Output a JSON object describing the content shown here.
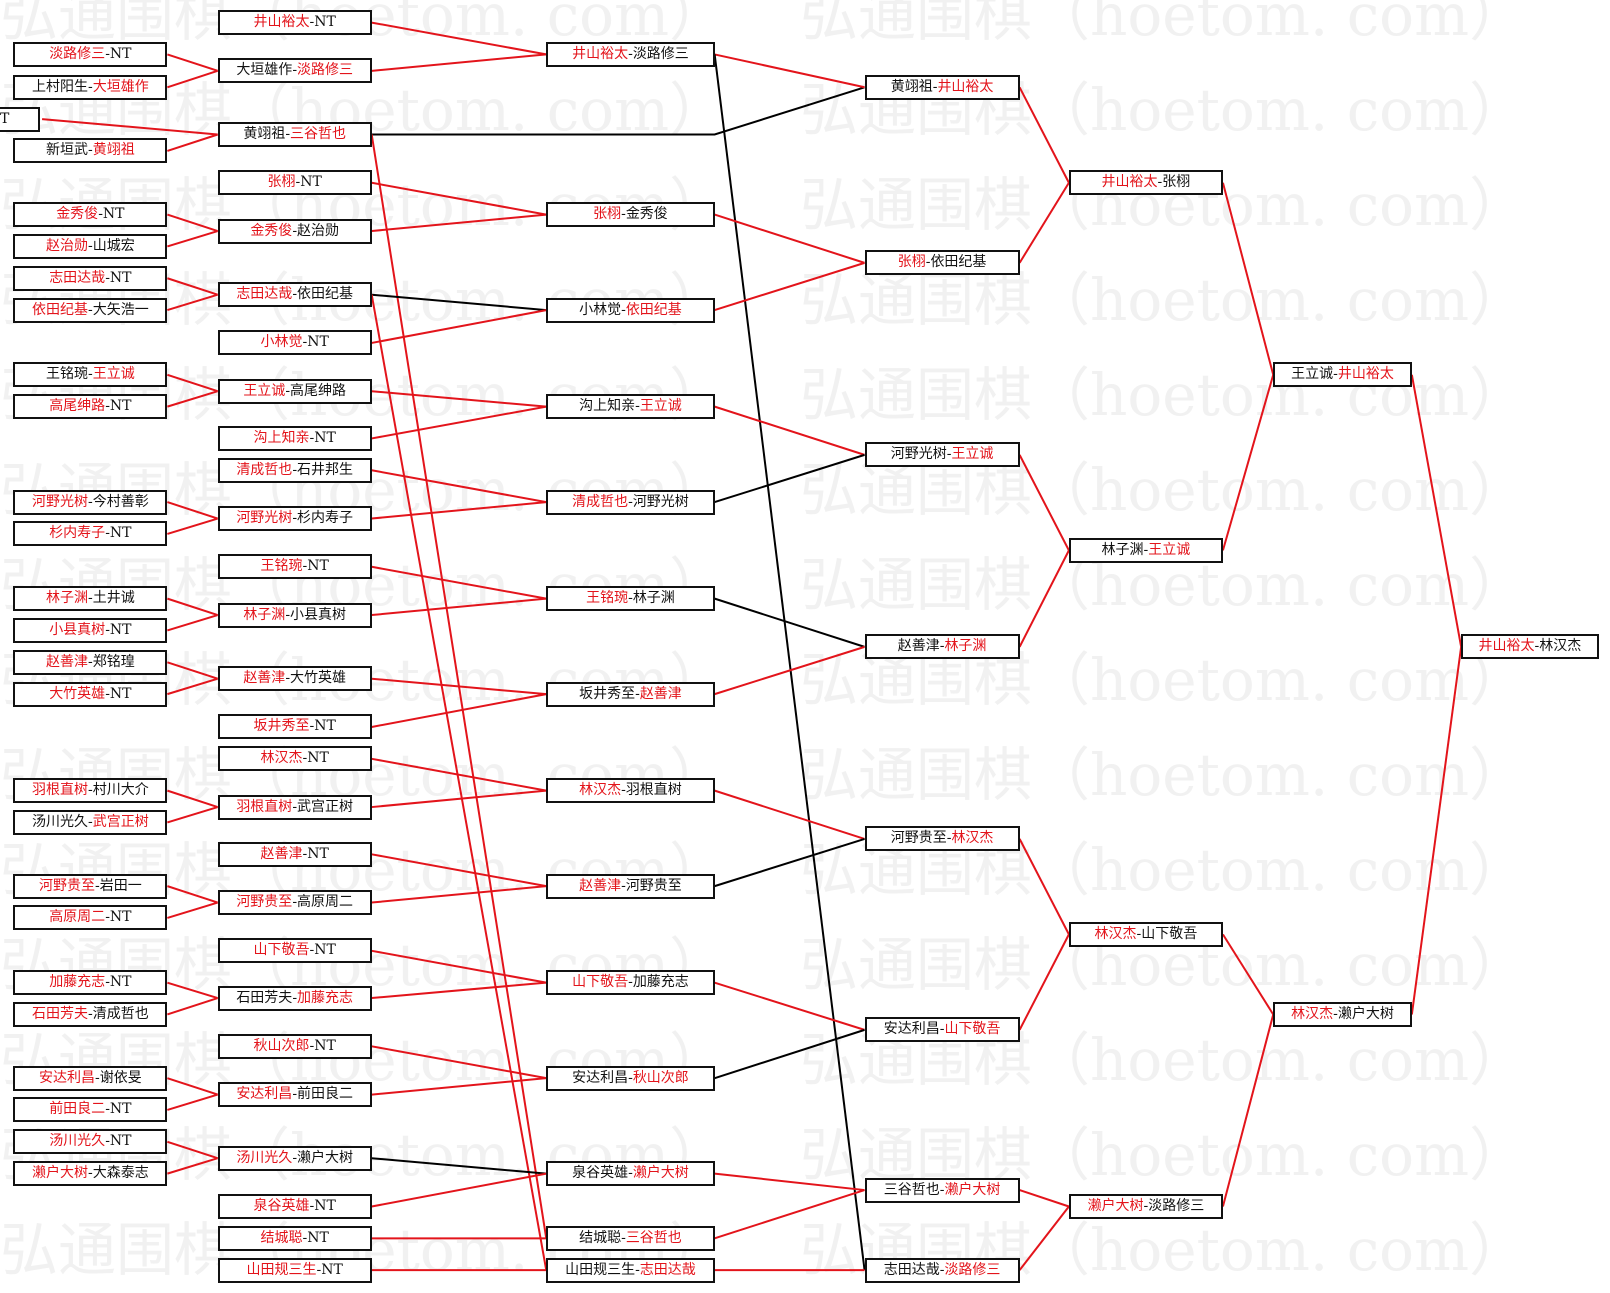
{
  "watermark": "弘通围棋（hoetom. com）",
  "colors": {
    "win": "#e3141b",
    "loss": "#000000",
    "border": "#111111"
  },
  "separator": "-",
  "columns": [
    {
      "boxes": [
        {
          "a": "淡路修三",
          "b": "NT",
          "red": "a"
        },
        {
          "a": "上村阳生",
          "b": "大垣雄作",
          "red": "b"
        },
        {
          "a": "",
          "b": "T",
          "red": ""
        },
        {
          "a": "新垣武",
          "b": "黄翊祖",
          "red": "b"
        },
        {
          "a": "金秀俊",
          "b": "NT",
          "red": "a"
        },
        {
          "a": "赵治勋",
          "b": "山城宏",
          "red": "a"
        },
        {
          "a": "志田达哉",
          "b": "NT",
          "red": "a"
        },
        {
          "a": "依田纪基",
          "b": "大矢浩一",
          "red": "a"
        },
        {
          "a": "王铭琬",
          "b": "王立诚",
          "red": "b"
        },
        {
          "a": "高尾绅路",
          "b": "NT",
          "red": "a"
        },
        {
          "a": "河野光树",
          "b": "今村善彰",
          "red": "a"
        },
        {
          "a": "杉内寿子",
          "b": "NT",
          "red": "a"
        },
        {
          "a": "林子渊",
          "b": "土井诚",
          "red": "a"
        },
        {
          "a": "小县真树",
          "b": "NT",
          "red": "a"
        },
        {
          "a": "赵善津",
          "b": "郑铭瑝",
          "red": "a"
        },
        {
          "a": "大竹英雄",
          "b": "NT",
          "red": "a"
        },
        {
          "a": "羽根直树",
          "b": "村川大介",
          "red": "a"
        },
        {
          "a": "汤川光久",
          "b": "武宫正树",
          "red": "b"
        },
        {
          "a": "河野贵至",
          "b": "岩田一",
          "red": "a"
        },
        {
          "a": "高原周二",
          "b": "NT",
          "red": "a"
        },
        {
          "a": "加藤充志",
          "b": "NT",
          "red": "a"
        },
        {
          "a": "石田芳夫",
          "b": "清成哲也",
          "red": "a"
        },
        {
          "a": "安达利昌",
          "b": "谢依旻",
          "red": "a"
        },
        {
          "a": "前田良二",
          "b": "NT",
          "red": "a"
        },
        {
          "a": "汤川光久",
          "b": "NT",
          "red": "a"
        },
        {
          "a": "濑户大树",
          "b": "大森泰志",
          "red": "a"
        }
      ]
    },
    {
      "boxes": [
        {
          "a": "井山裕太",
          "b": "NT",
          "red": "a"
        },
        {
          "a": "大垣雄作",
          "b": "淡路修三",
          "red": "b"
        },
        {
          "a": "黄翊祖",
          "b": "三谷哲也",
          "red": "b"
        },
        {
          "a": "张栩",
          "b": "NT",
          "red": "a"
        },
        {
          "a": "金秀俊",
          "b": "赵治勋",
          "red": "a"
        },
        {
          "a": "志田达哉",
          "b": "依田纪基",
          "red": "a"
        },
        {
          "a": "小林觉",
          "b": "NT",
          "red": "a"
        },
        {
          "a": "王立诚",
          "b": "高尾绅路",
          "red": "a"
        },
        {
          "a": "沟上知亲",
          "b": "NT",
          "red": "a"
        },
        {
          "a": "清成哲也",
          "b": "石井邦生",
          "red": "a"
        },
        {
          "a": "河野光树",
          "b": "杉内寿子",
          "red": "a"
        },
        {
          "a": "王铭琬",
          "b": "NT",
          "red": "a"
        },
        {
          "a": "林子渊",
          "b": "小县真树",
          "red": "a"
        },
        {
          "a": "赵善津",
          "b": "大竹英雄",
          "red": "a"
        },
        {
          "a": "坂井秀至",
          "b": "NT",
          "red": "a"
        },
        {
          "a": "林汉杰",
          "b": "NT",
          "red": "a"
        },
        {
          "a": "羽根直树",
          "b": "武宫正树",
          "red": "a"
        },
        {
          "a": "赵善津",
          "b": "NT",
          "red": "a"
        },
        {
          "a": "河野贵至",
          "b": "高原周二",
          "red": "a"
        },
        {
          "a": "山下敬吾",
          "b": "NT",
          "red": "a"
        },
        {
          "a": "石田芳夫",
          "b": "加藤充志",
          "red": "b"
        },
        {
          "a": "秋山次郎",
          "b": "NT",
          "red": "a"
        },
        {
          "a": "安达利昌",
          "b": "前田良二",
          "red": "a"
        },
        {
          "a": "汤川光久",
          "b": "濑户大树",
          "red": "a"
        },
        {
          "a": "泉谷英雄",
          "b": "NT",
          "red": "a"
        },
        {
          "a": "结城聪",
          "b": "NT",
          "red": "a"
        },
        {
          "a": "山田规三生",
          "b": "NT",
          "red": "a"
        }
      ]
    },
    {
      "boxes": [
        {
          "a": "井山裕太",
          "b": "淡路修三",
          "red": "a"
        },
        {
          "a": "张栩",
          "b": "金秀俊",
          "red": "a"
        },
        {
          "a": "小林觉",
          "b": "依田纪基",
          "red": "b"
        },
        {
          "a": "沟上知亲",
          "b": "王立诚",
          "red": "b"
        },
        {
          "a": "清成哲也",
          "b": "河野光树",
          "red": "a"
        },
        {
          "a": "王铭琬",
          "b": "林子渊",
          "red": "a"
        },
        {
          "a": "坂井秀至",
          "b": "赵善津",
          "red": "b"
        },
        {
          "a": "林汉杰",
          "b": "羽根直树",
          "red": "a"
        },
        {
          "a": "赵善津",
          "b": "河野贵至",
          "red": "a"
        },
        {
          "a": "山下敬吾",
          "b": "加藤充志",
          "red": "a"
        },
        {
          "a": "安达利昌",
          "b": "秋山次郎",
          "red": "b"
        },
        {
          "a": "泉谷英雄",
          "b": "濑户大树",
          "red": "b"
        },
        {
          "a": "结城聪",
          "b": "三谷哲也",
          "red": "b"
        },
        {
          "a": "山田规三生",
          "b": "志田达哉",
          "red": "b"
        }
      ]
    },
    {
      "boxes": [
        {
          "a": "黄翊祖",
          "b": "井山裕太",
          "red": "b"
        },
        {
          "a": "张栩",
          "b": "依田纪基",
          "red": "a"
        },
        {
          "a": "河野光树",
          "b": "王立诚",
          "red": "b"
        },
        {
          "a": "赵善津",
          "b": "林子渊",
          "red": "b"
        },
        {
          "a": "河野贵至",
          "b": "林汉杰",
          "red": "b"
        },
        {
          "a": "安达利昌",
          "b": "山下敬吾",
          "red": "b"
        },
        {
          "a": "三谷哲也",
          "b": "濑户大树",
          "red": "b"
        },
        {
          "a": "志田达哉",
          "b": "淡路修三",
          "red": "b"
        }
      ]
    },
    {
      "boxes": [
        {
          "a": "井山裕太",
          "b": "张栩",
          "red": "a"
        },
        {
          "a": "林子渊",
          "b": "王立诚",
          "red": "b"
        },
        {
          "a": "林汉杰",
          "b": "山下敬吾",
          "red": "a"
        },
        {
          "a": "濑户大树",
          "b": "淡路修三",
          "red": "a"
        }
      ]
    },
    {
      "boxes": [
        {
          "a": "王立诚",
          "b": "井山裕太",
          "red": "b"
        },
        {
          "a": "林汉杰",
          "b": "濑户大树",
          "red": "a"
        }
      ]
    },
    {
      "boxes": [
        {
          "a": "井山裕太",
          "b": "林汉杰",
          "red": "a"
        }
      ]
    }
  ],
  "links": [
    [
      [
        0,
        0
      ],
      [
        1,
        1
      ],
      "win"
    ],
    [
      [
        0,
        1
      ],
      [
        1,
        1
      ],
      "win"
    ],
    [
      [
        0,
        2
      ],
      [
        1,
        2
      ],
      "win"
    ],
    [
      [
        0,
        3
      ],
      [
        1,
        2
      ],
      "win"
    ],
    [
      [
        0,
        4
      ],
      [
        1,
        4
      ],
      "win"
    ],
    [
      [
        0,
        5
      ],
      [
        1,
        4
      ],
      "win"
    ],
    [
      [
        0,
        6
      ],
      [
        1,
        5
      ],
      "win"
    ],
    [
      [
        0,
        7
      ],
      [
        1,
        5
      ],
      "win"
    ],
    [
      [
        0,
        8
      ],
      [
        1,
        7
      ],
      "win"
    ],
    [
      [
        0,
        9
      ],
      [
        1,
        7
      ],
      "win"
    ],
    [
      [
        0,
        10
      ],
      [
        1,
        10
      ],
      "win"
    ],
    [
      [
        0,
        11
      ],
      [
        1,
        10
      ],
      "win"
    ],
    [
      [
        0,
        12
      ],
      [
        1,
        12
      ],
      "win"
    ],
    [
      [
        0,
        13
      ],
      [
        1,
        12
      ],
      "win"
    ],
    [
      [
        0,
        14
      ],
      [
        1,
        13
      ],
      "win"
    ],
    [
      [
        0,
        15
      ],
      [
        1,
        13
      ],
      "win"
    ],
    [
      [
        0,
        16
      ],
      [
        1,
        16
      ],
      "win"
    ],
    [
      [
        0,
        17
      ],
      [
        1,
        16
      ],
      "win"
    ],
    [
      [
        0,
        18
      ],
      [
        1,
        18
      ],
      "win"
    ],
    [
      [
        0,
        19
      ],
      [
        1,
        18
      ],
      "win"
    ],
    [
      [
        0,
        20
      ],
      [
        1,
        20
      ],
      "win"
    ],
    [
      [
        0,
        21
      ],
      [
        1,
        20
      ],
      "win"
    ],
    [
      [
        0,
        22
      ],
      [
        1,
        22
      ],
      "win"
    ],
    [
      [
        0,
        23
      ],
      [
        1,
        22
      ],
      "win"
    ],
    [
      [
        0,
        24
      ],
      [
        1,
        23
      ],
      "win"
    ],
    [
      [
        0,
        25
      ],
      [
        1,
        23
      ],
      "win"
    ],
    [
      [
        1,
        0
      ],
      [
        2,
        0
      ],
      "win"
    ],
    [
      [
        1,
        1
      ],
      [
        2,
        0
      ],
      "win"
    ],
    [
      [
        1,
        2
      ],
      [
        3,
        0
      ],
      "loss"
    ],
    [
      [
        1,
        2
      ],
      [
        2,
        12
      ],
      "win"
    ],
    [
      [
        1,
        3
      ],
      [
        2,
        1
      ],
      "win"
    ],
    [
      [
        1,
        4
      ],
      [
        2,
        1
      ],
      "win"
    ],
    [
      [
        1,
        5
      ],
      [
        2,
        2
      ],
      "loss"
    ],
    [
      [
        1,
        5
      ],
      [
        2,
        13
      ],
      "win"
    ],
    [
      [
        1,
        6
      ],
      [
        2,
        2
      ],
      "win"
    ],
    [
      [
        1,
        7
      ],
      [
        2,
        3
      ],
      "win"
    ],
    [
      [
        1,
        8
      ],
      [
        2,
        3
      ],
      "win"
    ],
    [
      [
        1,
        9
      ],
      [
        2,
        4
      ],
      "win"
    ],
    [
      [
        1,
        10
      ],
      [
        2,
        4
      ],
      "win"
    ],
    [
      [
        1,
        11
      ],
      [
        2,
        5
      ],
      "win"
    ],
    [
      [
        1,
        12
      ],
      [
        2,
        5
      ],
      "win"
    ],
    [
      [
        1,
        13
      ],
      [
        2,
        6
      ],
      "win"
    ],
    [
      [
        1,
        14
      ],
      [
        2,
        6
      ],
      "win"
    ],
    [
      [
        1,
        15
      ],
      [
        2,
        7
      ],
      "win"
    ],
    [
      [
        1,
        16
      ],
      [
        2,
        7
      ],
      "win"
    ],
    [
      [
        1,
        17
      ],
      [
        2,
        8
      ],
      "win"
    ],
    [
      [
        1,
        18
      ],
      [
        2,
        8
      ],
      "win"
    ],
    [
      [
        1,
        19
      ],
      [
        2,
        9
      ],
      "win"
    ],
    [
      [
        1,
        20
      ],
      [
        2,
        9
      ],
      "win"
    ],
    [
      [
        1,
        21
      ],
      [
        2,
        10
      ],
      "win"
    ],
    [
      [
        1,
        22
      ],
      [
        2,
        10
      ],
      "win"
    ],
    [
      [
        1,
        23
      ],
      [
        2,
        11
      ],
      "loss"
    ],
    [
      [
        1,
        24
      ],
      [
        2,
        11
      ],
      "win"
    ],
    [
      [
        1,
        25
      ],
      [
        2,
        12
      ],
      "win"
    ],
    [
      [
        1,
        26
      ],
      [
        2,
        13
      ],
      "win"
    ],
    [
      [
        2,
        0
      ],
      [
        3,
        0
      ],
      "win"
    ],
    [
      [
        2,
        0
      ],
      [
        3,
        7
      ],
      "loss"
    ],
    [
      [
        2,
        1
      ],
      [
        3,
        1
      ],
      "win"
    ],
    [
      [
        2,
        2
      ],
      [
        3,
        1
      ],
      "win"
    ],
    [
      [
        2,
        3
      ],
      [
        3,
        2
      ],
      "win"
    ],
    [
      [
        2,
        4
      ],
      [
        3,
        2
      ],
      "loss"
    ],
    [
      [
        2,
        5
      ],
      [
        3,
        3
      ],
      "loss"
    ],
    [
      [
        2,
        6
      ],
      [
        3,
        3
      ],
      "win"
    ],
    [
      [
        2,
        7
      ],
      [
        3,
        4
      ],
      "win"
    ],
    [
      [
        2,
        8
      ],
      [
        3,
        4
      ],
      "loss"
    ],
    [
      [
        2,
        9
      ],
      [
        3,
        5
      ],
      "win"
    ],
    [
      [
        2,
        10
      ],
      [
        3,
        5
      ],
      "loss"
    ],
    [
      [
        2,
        11
      ],
      [
        3,
        6
      ],
      "win"
    ],
    [
      [
        2,
        12
      ],
      [
        3,
        6
      ],
      "win"
    ],
    [
      [
        2,
        13
      ],
      [
        3,
        7
      ],
      "win"
    ],
    [
      [
        3,
        0
      ],
      [
        4,
        0
      ],
      "win"
    ],
    [
      [
        3,
        1
      ],
      [
        4,
        0
      ],
      "win"
    ],
    [
      [
        3,
        2
      ],
      [
        4,
        1
      ],
      "win"
    ],
    [
      [
        3,
        3
      ],
      [
        4,
        1
      ],
      "win"
    ],
    [
      [
        3,
        4
      ],
      [
        4,
        2
      ],
      "win"
    ],
    [
      [
        3,
        5
      ],
      [
        4,
        2
      ],
      "win"
    ],
    [
      [
        3,
        6
      ],
      [
        4,
        3
      ],
      "win"
    ],
    [
      [
        3,
        7
      ],
      [
        4,
        3
      ],
      "win"
    ],
    [
      [
        4,
        0
      ],
      [
        5,
        0
      ],
      "win"
    ],
    [
      [
        4,
        1
      ],
      [
        5,
        0
      ],
      "win"
    ],
    [
      [
        4,
        2
      ],
      [
        5,
        1
      ],
      "win"
    ],
    [
      [
        4,
        3
      ],
      [
        5,
        1
      ],
      "win"
    ],
    [
      [
        5,
        0
      ],
      [
        6,
        0
      ],
      "win"
    ],
    [
      [
        5,
        1
      ],
      [
        6,
        0
      ],
      "win"
    ]
  ]
}
